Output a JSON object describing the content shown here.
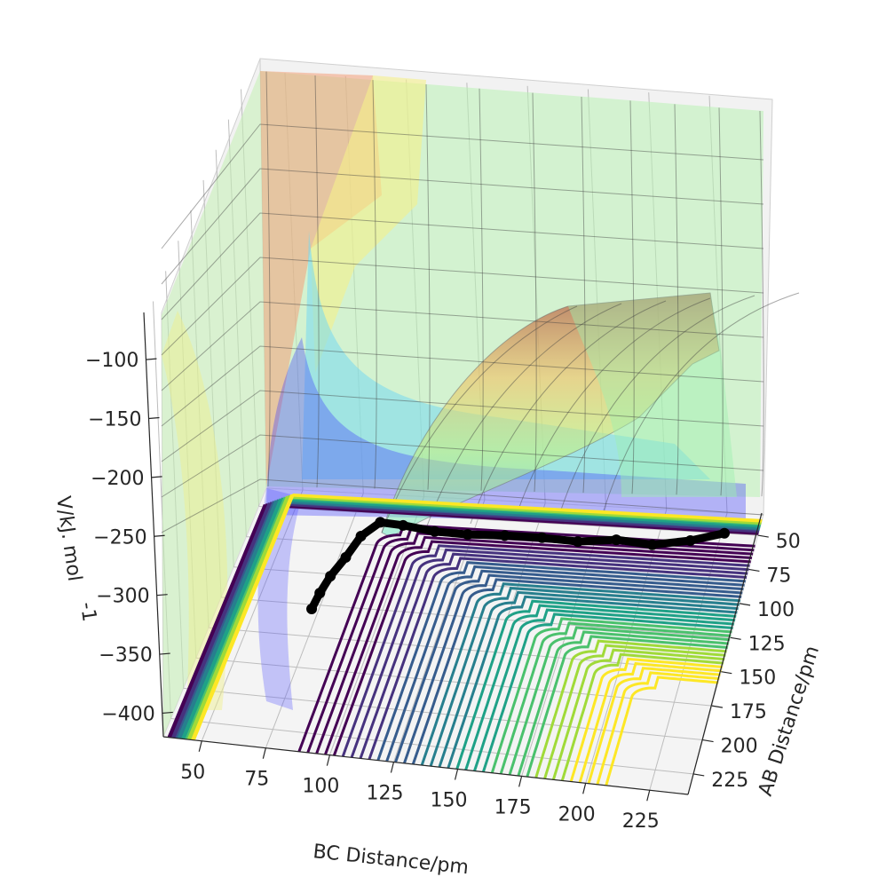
{
  "chart_data": {
    "type": "surface3d",
    "title": "",
    "xlabel": "BC Distance/pm",
    "ylabel": "AB Distance/pm",
    "zlabel": "V/kJ.mol$^{-1}$",
    "zlabel_display": "V/kJ. mol",
    "zlabel_superscript": "-1",
    "x_ticks": [
      "50",
      "75",
      "100",
      "125",
      "150",
      "175",
      "200",
      "225"
    ],
    "y_ticks": [
      "50",
      "75",
      "100",
      "125",
      "150",
      "175",
      "200",
      "225"
    ],
    "z_ticks": [
      "−100",
      "−150",
      "−200",
      "−250",
      "−300",
      "−350",
      "−400"
    ],
    "x_range": [
      35,
      240
    ],
    "y_range": [
      35,
      240
    ],
    "z_range": [
      -420,
      -60
    ],
    "surface_colormap": "jet (transparent)",
    "contour_colormap": "viridis",
    "trajectory_color": "#000000",
    "trajectory": [
      {
        "bc": 228,
        "ab": 60,
        "v": -408
      },
      {
        "bc": 215,
        "ab": 66,
        "v": -409
      },
      {
        "bc": 200,
        "ab": 70,
        "v": -410
      },
      {
        "bc": 185,
        "ab": 68,
        "v": -410
      },
      {
        "bc": 170,
        "ab": 72,
        "v": -409
      },
      {
        "bc": 155,
        "ab": 70,
        "v": -410
      },
      {
        "bc": 140,
        "ab": 71,
        "v": -409
      },
      {
        "bc": 125,
        "ab": 72,
        "v": -409
      },
      {
        "bc": 112,
        "ab": 74,
        "v": -406
      },
      {
        "bc": 100,
        "ab": 78,
        "v": -398
      },
      {
        "bc": 92,
        "ab": 84,
        "v": -390
      },
      {
        "bc": 86,
        "ab": 94,
        "v": -392
      },
      {
        "bc": 82,
        "ab": 106,
        "v": -398
      },
      {
        "bc": 78,
        "ab": 118,
        "v": -402
      },
      {
        "bc": 76,
        "ab": 130,
        "v": -404
      },
      {
        "bc": 75,
        "ab": 142,
        "v": -405
      }
    ]
  }
}
